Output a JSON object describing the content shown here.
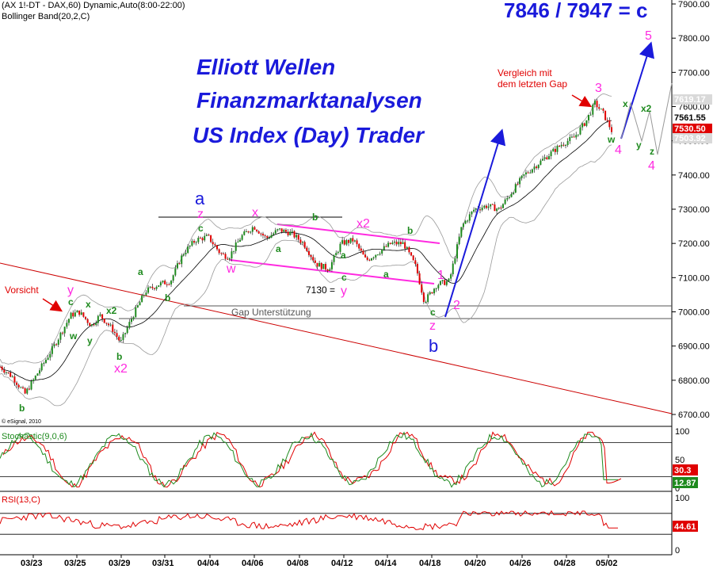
{
  "header": {
    "line1": "(AX 1!-DT - DAX,60) Dynamic,Auto(8:00-22:00)",
    "line2": "Bollinger Band(20,2,C)",
    "copyright": "© eSignal, 2010"
  },
  "titles": {
    "line1": "Elliott Wellen",
    "line2": "Finanzmarktanalysen",
    "line3": "US Index (Day) Trader",
    "ratio": "7846 / 7947 = c"
  },
  "chart_data": [
    {
      "type": "line",
      "title": "",
      "x_ticks": [
        "03/23",
        "03/25",
        "03/29",
        "03/31",
        "04/04",
        "04/06",
        "04/08",
        "04/12",
        "04/14",
        "04/18",
        "04/20",
        "04/26",
        "04/28",
        "05/02"
      ],
      "y_ticks": [
        6700,
        6800,
        6900,
        7000,
        7100,
        7200,
        7300,
        7400,
        7500,
        7600,
        7700,
        7800,
        7900
      ],
      "y_tick_labels": [
        "6700.00",
        "6800.00",
        "6900.00",
        "7000.00",
        "7100.00",
        "7200.00",
        "7300.00",
        "7400.00",
        "7500.00",
        "7600.00",
        "7700.00",
        "7800.00",
        "7900.00"
      ],
      "ylim": [
        6670,
        7940
      ],
      "series": [],
      "price_points": [
        {
          "t": 0,
          "y": 6840
        },
        {
          "t": 3,
          "y": 6810
        },
        {
          "t": 6,
          "y": 6760
        },
        {
          "t": 9,
          "y": 6820
        },
        {
          "t": 13,
          "y": 6900
        },
        {
          "t": 17,
          "y": 6990
        },
        {
          "t": 19,
          "y": 7000
        },
        {
          "t": 22,
          "y": 6960
        },
        {
          "t": 24,
          "y": 6990
        },
        {
          "t": 27,
          "y": 6950
        },
        {
          "t": 29,
          "y": 6910
        },
        {
          "t": 32,
          "y": 6990
        },
        {
          "t": 35,
          "y": 7060
        },
        {
          "t": 38,
          "y": 7080
        },
        {
          "t": 41,
          "y": 7090
        },
        {
          "t": 44,
          "y": 7170
        },
        {
          "t": 47,
          "y": 7210
        },
        {
          "t": 50,
          "y": 7220
        },
        {
          "t": 53,
          "y": 7170
        },
        {
          "t": 55,
          "y": 7160
        },
        {
          "t": 58,
          "y": 7220
        },
        {
          "t": 61,
          "y": 7250
        },
        {
          "t": 64,
          "y": 7215
        },
        {
          "t": 67,
          "y": 7240
        },
        {
          "t": 70,
          "y": 7230
        },
        {
          "t": 73,
          "y": 7200
        },
        {
          "t": 76,
          "y": 7140
        },
        {
          "t": 79,
          "y": 7125
        },
        {
          "t": 82,
          "y": 7200
        },
        {
          "t": 85,
          "y": 7210
        },
        {
          "t": 88,
          "y": 7150
        },
        {
          "t": 91,
          "y": 7175
        },
        {
          "t": 94,
          "y": 7200
        },
        {
          "t": 97,
          "y": 7200
        },
        {
          "t": 100,
          "y": 7130
        },
        {
          "t": 102,
          "y": 7030
        },
        {
          "t": 105,
          "y": 7080
        },
        {
          "t": 108,
          "y": 7090
        },
        {
          "t": 111,
          "y": 7250
        },
        {
          "t": 114,
          "y": 7300
        },
        {
          "t": 117,
          "y": 7310
        },
        {
          "t": 120,
          "y": 7300
        },
        {
          "t": 123,
          "y": 7350
        },
        {
          "t": 126,
          "y": 7400
        },
        {
          "t": 129,
          "y": 7430
        },
        {
          "t": 132,
          "y": 7460
        },
        {
          "t": 135,
          "y": 7490
        },
        {
          "t": 138,
          "y": 7510
        },
        {
          "t": 141,
          "y": 7560
        },
        {
          "t": 143,
          "y": 7610
        },
        {
          "t": 145,
          "y": 7580
        },
        {
          "t": 147,
          "y": 7530
        }
      ],
      "price_badges": [
        {
          "label": "7619.17",
          "value": 7619.17,
          "color": "#d9d9d9",
          "text_color": "#ffffff"
        },
        {
          "label": "7561.55",
          "value": 7561.55,
          "color": "#ffffff",
          "text_color": "#000000"
        },
        {
          "label": "7530.50",
          "value": 7530.5,
          "color": "#e00000",
          "text_color": "#ffffff"
        },
        {
          "label": "7503.92",
          "value": 7503.92,
          "color": "#d9d9d9",
          "text_color": "#ffffff"
        }
      ],
      "annotations": {
        "gap_label": "Gap Unterstützung",
        "level_label": "7130 = ",
        "warning": "Vorsicht",
        "compare_line1": "Vergleich mit",
        "compare_line2": "dem letzten Gap"
      },
      "wave_labels_green": [
        "b",
        "c",
        "w",
        "y",
        "x",
        "x2",
        "b",
        "a",
        "c",
        "a",
        "b",
        "a",
        "c",
        "a",
        "b",
        "c",
        "x",
        "x2",
        "w",
        "y",
        "z"
      ],
      "wave_labels_magenta": [
        "y",
        "x2",
        "z",
        "x",
        "w",
        "y",
        "x2",
        "1",
        "2",
        "z",
        "3",
        "4",
        "5",
        "4"
      ],
      "wave_labels_blue": [
        "a",
        "b"
      ]
    },
    {
      "type": "line",
      "title": "Stochastic(9,0,6)",
      "y_ticks": [
        0,
        50,
        100
      ],
      "y_tick_labels": [
        "0",
        "50",
        "100"
      ],
      "ylim": [
        0,
        100
      ],
      "reference_lines": [
        20,
        80
      ],
      "value_badges": [
        {
          "label": "30.3",
          "color": "#e00000"
        },
        {
          "label": "12.87",
          "color": "#1e8a1e"
        }
      ]
    },
    {
      "type": "line",
      "title": "RSI(13,C)",
      "y_ticks": [
        0,
        50,
        100
      ],
      "y_tick_labels": [
        "0",
        "50",
        "100"
      ],
      "ylim": [
        0,
        100
      ],
      "reference_lines": [
        30,
        70
      ],
      "value_badges": [
        {
          "label": "44.61",
          "color": "#e00000"
        }
      ]
    }
  ],
  "colors": {
    "bull_candle": "#1e8a1e",
    "bear_candle": "#e00000",
    "bollinger": "#9a9a9a",
    "wave_green": "#1e8a1e",
    "wave_magenta": "#ff2ae0",
    "wave_blue": "#1a1adb",
    "trendline": "#cc0000"
  }
}
